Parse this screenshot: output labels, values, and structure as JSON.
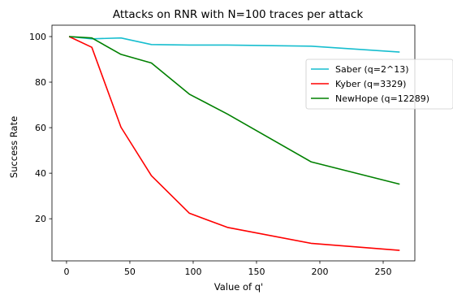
{
  "chart_data": {
    "type": "line",
    "title": "Attacks on RNR with N=100 traces per attack",
    "xlabel": "Value of q'",
    "ylabel": "Success Rate",
    "xlim": [
      -11.5,
      275
    ],
    "ylim": [
      1.5,
      105
    ],
    "x_ticks": [
      0,
      50,
      100,
      150,
      200,
      250
    ],
    "y_ticks": [
      20,
      40,
      60,
      80,
      100
    ],
    "grid": false,
    "legend_position": "right",
    "series": [
      {
        "name": "Saber (q=2^13)",
        "color": "#17becf",
        "x": [
          2,
          20,
          43,
          67,
          97,
          127,
          193,
          263
        ],
        "y": [
          100,
          99,
          99.4,
          96.5,
          96.3,
          96.3,
          95.8,
          93.2
        ]
      },
      {
        "name": "Kyber (q=3329)",
        "color": "#ff0000",
        "x": [
          2,
          20,
          43,
          67,
          97,
          127,
          193,
          263
        ],
        "y": [
          100,
          95.3,
          60.2,
          38.9,
          22.4,
          16.2,
          9.2,
          6.1
        ]
      },
      {
        "name": "NewHope (q=12289)",
        "color": "#008000",
        "x": [
          2,
          20,
          43,
          67,
          97,
          127,
          193,
          263
        ],
        "y": [
          100,
          99.4,
          92.2,
          88.4,
          74.7,
          66.0,
          45.0,
          35.2
        ]
      }
    ]
  }
}
